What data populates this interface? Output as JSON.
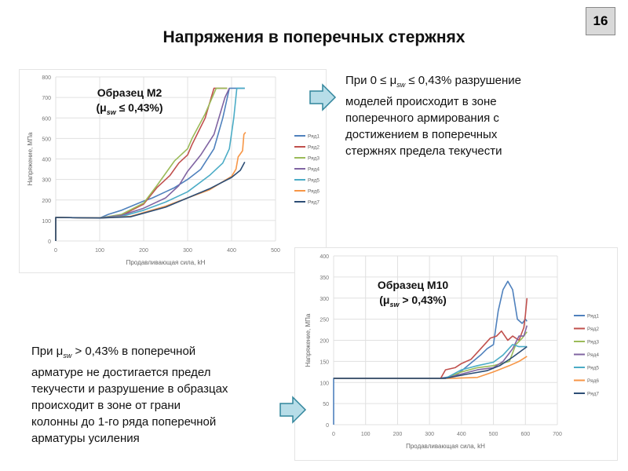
{
  "slide": {
    "title": "Напряжения в поперечных стержнях",
    "page_number": "16"
  },
  "text_top": {
    "line1_a": "При 0 ≤ μ",
    "line1_sub": "sw",
    "line1_b": " ≤ 0,43% разрушение",
    "rest": [
      "моделей происходит в зоне",
      "поперечного армирования с",
      "достижением в поперечных",
      "стержнях предела текучести"
    ]
  },
  "text_bottom": {
    "line1_a": "При μ",
    "line1_sub": "sw",
    "line1_b": " > 0,43% в поперечной",
    "rest": [
      "арматуре не достигается предел",
      "текучести и разрушение в образцах",
      "происходит в зоне от грани",
      "колонны до 1-го ряда поперечной",
      "арматуры усиления"
    ]
  },
  "colors": {
    "arrow_fill": "#b7dde8",
    "arrow_stroke": "#31859c"
  },
  "chart_data": [
    {
      "type": "line",
      "label_line1": "Образец М2",
      "label_a": "(μ",
      "label_sub": "sw",
      "label_b": " ≤ 0,43%)",
      "xlabel": "Продавливающая сила, kH",
      "ylabel": "Напряжение, МПа",
      "xlim": [
        0,
        500
      ],
      "ylim": [
        0,
        800
      ],
      "xticks": [
        0,
        100,
        200,
        300,
        400,
        500
      ],
      "yticks": [
        0,
        100,
        200,
        300,
        400,
        500,
        600,
        700,
        800
      ],
      "grid": true,
      "legend": "right",
      "series": [
        {
          "name": "Ряд1",
          "color": "#4f81bd",
          "points": [
            [
              0,
              0
            ],
            [
              0,
              115
            ],
            [
              100,
              112
            ],
            [
              120,
              130
            ],
            [
              150,
              150
            ],
            [
              200,
              195
            ],
            [
              220,
              210
            ],
            [
              250,
              240
            ],
            [
              270,
              260
            ],
            [
              300,
              300
            ],
            [
              330,
              350
            ],
            [
              360,
              450
            ],
            [
              380,
              600
            ],
            [
              395,
              745
            ],
            [
              430,
              745
            ]
          ]
        },
        {
          "name": "Ряд2",
          "color": "#c0504d",
          "points": [
            [
              0,
              0
            ],
            [
              0,
              115
            ],
            [
              100,
              112
            ],
            [
              150,
              125
            ],
            [
              200,
              180
            ],
            [
              230,
              260
            ],
            [
              260,
              320
            ],
            [
              280,
              380
            ],
            [
              300,
              420
            ],
            [
              310,
              470
            ],
            [
              340,
              600
            ],
            [
              360,
              745
            ],
            [
              390,
              745
            ]
          ]
        },
        {
          "name": "Ряд3",
          "color": "#9bbb59",
          "points": [
            [
              0,
              0
            ],
            [
              0,
              115
            ],
            [
              100,
              112
            ],
            [
              150,
              130
            ],
            [
              200,
              185
            ],
            [
              230,
              270
            ],
            [
              270,
              390
            ],
            [
              300,
              450
            ],
            [
              310,
              500
            ],
            [
              340,
              620
            ],
            [
              365,
              745
            ],
            [
              390,
              745
            ]
          ]
        },
        {
          "name": "Ряд4",
          "color": "#8064a2",
          "points": [
            [
              0,
              0
            ],
            [
              0,
              115
            ],
            [
              100,
              112
            ],
            [
              150,
              125
            ],
            [
              200,
              160
            ],
            [
              250,
              210
            ],
            [
              280,
              270
            ],
            [
              300,
              340
            ],
            [
              330,
              420
            ],
            [
              360,
              520
            ],
            [
              385,
              700
            ],
            [
              395,
              745
            ]
          ]
        },
        {
          "name": "Ряд5",
          "color": "#4bacc6",
          "points": [
            [
              0,
              0
            ],
            [
              0,
              115
            ],
            [
              100,
              112
            ],
            [
              150,
              120
            ],
            [
              200,
              150
            ],
            [
              250,
              190
            ],
            [
              300,
              240
            ],
            [
              350,
              320
            ],
            [
              380,
              380
            ],
            [
              395,
              450
            ],
            [
              405,
              600
            ],
            [
              412,
              745
            ],
            [
              430,
              745
            ]
          ]
        },
        {
          "name": "Ряд6",
          "color": "#f79646",
          "points": [
            [
              0,
              0
            ],
            [
              0,
              115
            ],
            [
              100,
              112
            ],
            [
              170,
              120
            ],
            [
              250,
              170
            ],
            [
              300,
              210
            ],
            [
              350,
              250
            ],
            [
              400,
              315
            ],
            [
              410,
              350
            ],
            [
              415,
              410
            ],
            [
              420,
              425
            ],
            [
              425,
              440
            ],
            [
              428,
              520
            ],
            [
              432,
              530
            ]
          ]
        },
        {
          "name": "Ряд7",
          "color": "#2c4d75",
          "points": [
            [
              0,
              0
            ],
            [
              0,
              115
            ],
            [
              100,
              112
            ],
            [
              170,
              118
            ],
            [
              250,
              165
            ],
            [
              300,
              210
            ],
            [
              350,
              255
            ],
            [
              400,
              310
            ],
            [
              420,
              345
            ],
            [
              430,
              385
            ]
          ]
        }
      ]
    },
    {
      "type": "line",
      "label_line1": "Образец М10",
      "label_a": "(μ",
      "label_sub": "sw",
      "label_b": " > 0,43%)",
      "xlabel": "Продавливающая сила, kH",
      "ylabel": "Напряжение, МПа",
      "xlim": [
        0,
        700
      ],
      "ylim": [
        0,
        400
      ],
      "xticks": [
        0,
        100,
        200,
        300,
        400,
        500,
        600,
        700
      ],
      "yticks": [
        0,
        50,
        100,
        150,
        200,
        250,
        300,
        350,
        400
      ],
      "grid": true,
      "legend": "right",
      "series": [
        {
          "name": "Ряд1",
          "color": "#4f81bd",
          "points": [
            [
              0,
              0
            ],
            [
              0,
              110
            ],
            [
              330,
              110
            ],
            [
              380,
              115
            ],
            [
              420,
              140
            ],
            [
              460,
              165
            ],
            [
              480,
              180
            ],
            [
              500,
              190
            ],
            [
              515,
              270
            ],
            [
              530,
              320
            ],
            [
              545,
              340
            ],
            [
              560,
              320
            ],
            [
              575,
              250
            ],
            [
              590,
              240
            ],
            [
              600,
              250
            ],
            [
              605,
              245
            ]
          ]
        },
        {
          "name": "Ряд2",
          "color": "#c0504d",
          "points": [
            [
              0,
              110
            ],
            [
              335,
              110
            ],
            [
              350,
              130
            ],
            [
              380,
              135
            ],
            [
              400,
              145
            ],
            [
              430,
              155
            ],
            [
              460,
              180
            ],
            [
              490,
              205
            ],
            [
              510,
              210
            ],
            [
              525,
              222
            ],
            [
              545,
              200
            ],
            [
              560,
              210
            ],
            [
              580,
              200
            ],
            [
              595,
              230
            ],
            [
              600,
              260
            ],
            [
              605,
              300
            ]
          ]
        },
        {
          "name": "Ряд3",
          "color": "#9bbb59",
          "points": [
            [
              0,
              110
            ],
            [
              350,
              110
            ],
            [
              400,
              125
            ],
            [
              450,
              135
            ],
            [
              500,
              140
            ],
            [
              550,
              150
            ],
            [
              570,
              190
            ],
            [
              590,
              205
            ],
            [
              605,
              220
            ]
          ]
        },
        {
          "name": "Ряд4",
          "color": "#8064a2",
          "points": [
            [
              0,
              110
            ],
            [
              350,
              110
            ],
            [
              400,
              120
            ],
            [
              450,
              130
            ],
            [
              500,
              135
            ],
            [
              530,
              150
            ],
            [
              560,
              180
            ],
            [
              580,
              210
            ],
            [
              595,
              210
            ],
            [
              605,
              235
            ]
          ]
        },
        {
          "name": "Ряд5",
          "color": "#4bacc6",
          "points": [
            [
              0,
              110
            ],
            [
              350,
              110
            ],
            [
              400,
              130
            ],
            [
              450,
              140
            ],
            [
              500,
              148
            ],
            [
              530,
              165
            ],
            [
              560,
              190
            ],
            [
              580,
              185
            ],
            [
              605,
              185
            ]
          ]
        },
        {
          "name": "Ряд6",
          "color": "#f79646",
          "points": [
            [
              0,
              110
            ],
            [
              370,
              110
            ],
            [
              450,
              112
            ],
            [
              500,
              125
            ],
            [
              550,
              140
            ],
            [
              580,
              150
            ],
            [
              605,
              162
            ]
          ]
        },
        {
          "name": "Ряд7",
          "color": "#2c4d75",
          "points": [
            [
              0,
              110
            ],
            [
              350,
              110
            ],
            [
              420,
              120
            ],
            [
              480,
              128
            ],
            [
              520,
              140
            ],
            [
              560,
              160
            ],
            [
              605,
              185
            ]
          ]
        }
      ]
    }
  ]
}
